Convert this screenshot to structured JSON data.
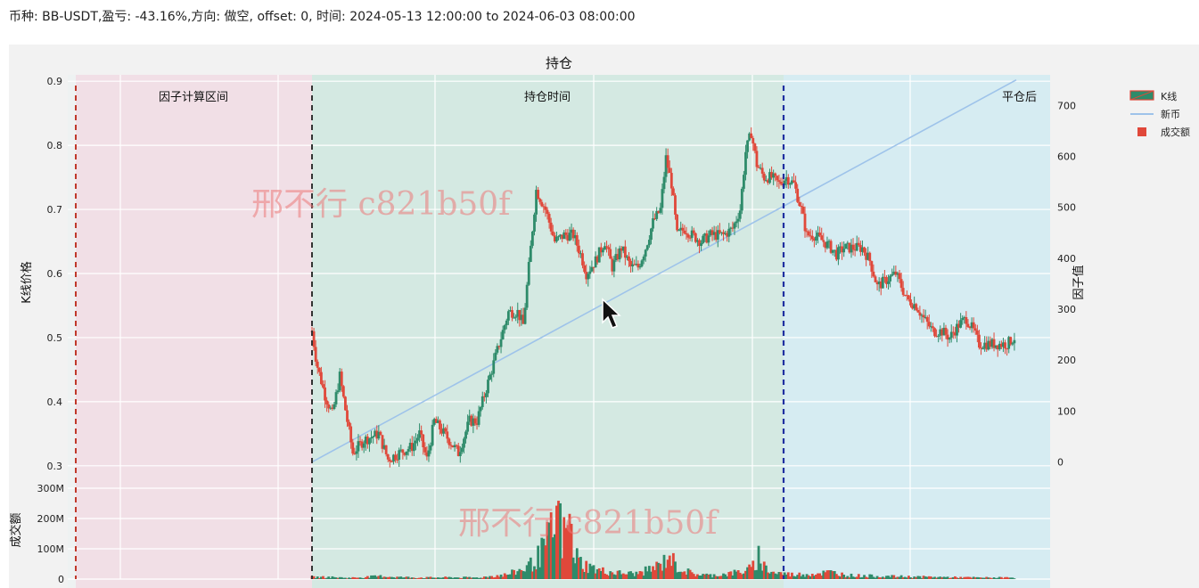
{
  "header": {
    "summary": "币种: BB-USDT,盈亏: -43.16%,方向: 做空, offset: 0, 时间: 2024-05-13 12:00:00 to 2024-06-03 08:00:00"
  },
  "watermark": {
    "top": "邢不行 c821b50f",
    "bottom": "邢不行 c821b50f"
  },
  "colors": {
    "up": "#2e8b6a",
    "down": "#e0483a",
    "trend": "#9ec3ea",
    "entry_line": "#333333",
    "factor_line": "#c0392b",
    "exit_line": "#1f2fa0",
    "zone_factor": "#f1dfe6",
    "zone_hold": "#d4e9e2",
    "zone_after": "#d6ecf2"
  },
  "chart_data": {
    "type": "candlestick",
    "title": "持仓",
    "zones": [
      {
        "label": "因子计算区间"
      },
      {
        "label": "持仓时间"
      },
      {
        "label": "平仓后"
      }
    ],
    "y_left": {
      "label": "K线价格",
      "range": [
        0.29,
        0.91
      ],
      "ticks": [
        0.3,
        0.4,
        0.5,
        0.6,
        0.7,
        0.8,
        0.9
      ]
    },
    "y_right": {
      "label": "因子值",
      "range": [
        -20,
        760
      ],
      "ticks": [
        0,
        100,
        200,
        300,
        400,
        500,
        600,
        700
      ]
    },
    "y_volume": {
      "label": "成交额",
      "range": [
        0,
        300
      ],
      "ticks": [
        "0",
        "100M",
        "200M",
        "300M"
      ]
    },
    "legend": {
      "position": "top-right",
      "items": [
        "K线",
        "新币",
        "成交额"
      ]
    },
    "factor_line": {
      "name": "新币",
      "start": 0,
      "end": 750
    },
    "price_path": [
      [
        0,
        0.51
      ],
      [
        5,
        0.46
      ],
      [
        14,
        0.41
      ],
      [
        22,
        0.38
      ],
      [
        30,
        0.44
      ],
      [
        38,
        0.37
      ],
      [
        44,
        0.32
      ],
      [
        56,
        0.34
      ],
      [
        72,
        0.35
      ],
      [
        82,
        0.31
      ],
      [
        94,
        0.32
      ],
      [
        108,
        0.33
      ],
      [
        116,
        0.35
      ],
      [
        124,
        0.31
      ],
      [
        132,
        0.37
      ],
      [
        148,
        0.34
      ],
      [
        158,
        0.32
      ],
      [
        170,
        0.37
      ],
      [
        178,
        0.37
      ],
      [
        186,
        0.41
      ],
      [
        200,
        0.48
      ],
      [
        212,
        0.54
      ],
      [
        222,
        0.54
      ],
      [
        228,
        0.52
      ],
      [
        234,
        0.61
      ],
      [
        242,
        0.73
      ],
      [
        252,
        0.7
      ],
      [
        262,
        0.65
      ],
      [
        272,
        0.66
      ],
      [
        282,
        0.66
      ],
      [
        290,
        0.63
      ],
      [
        296,
        0.6
      ],
      [
        306,
        0.62
      ],
      [
        316,
        0.65
      ],
      [
        324,
        0.61
      ],
      [
        334,
        0.64
      ],
      [
        344,
        0.61
      ],
      [
        352,
        0.61
      ],
      [
        360,
        0.64
      ],
      [
        368,
        0.68
      ],
      [
        376,
        0.7
      ],
      [
        382,
        0.78
      ],
      [
        388,
        0.74
      ],
      [
        394,
        0.66
      ],
      [
        402,
        0.67
      ],
      [
        410,
        0.66
      ],
      [
        420,
        0.65
      ],
      [
        430,
        0.66
      ],
      [
        444,
        0.66
      ],
      [
        454,
        0.67
      ],
      [
        462,
        0.7
      ],
      [
        468,
        0.79
      ],
      [
        474,
        0.82
      ],
      [
        480,
        0.77
      ],
      [
        488,
        0.75
      ],
      [
        496,
        0.75
      ],
      [
        504,
        0.74
      ],
      [
        512,
        0.75
      ],
      [
        520,
        0.74
      ],
      [
        528,
        0.7
      ],
      [
        534,
        0.66
      ],
      [
        542,
        0.66
      ],
      [
        552,
        0.65
      ],
      [
        560,
        0.64
      ],
      [
        566,
        0.63
      ],
      [
        574,
        0.64
      ],
      [
        584,
        0.64
      ],
      [
        594,
        0.64
      ],
      [
        602,
        0.62
      ],
      [
        610,
        0.58
      ],
      [
        620,
        0.59
      ],
      [
        630,
        0.6
      ],
      [
        642,
        0.56
      ],
      [
        652,
        0.55
      ],
      [
        660,
        0.53
      ],
      [
        670,
        0.51
      ],
      [
        680,
        0.51
      ],
      [
        688,
        0.5
      ],
      [
        698,
        0.52
      ],
      [
        706,
        0.53
      ],
      [
        714,
        0.51
      ],
      [
        720,
        0.49
      ],
      [
        728,
        0.49
      ],
      [
        738,
        0.49
      ],
      [
        750,
        0.49
      ],
      [
        758,
        0.5
      ]
    ],
    "volume_spikes": [
      [
        0,
        8
      ],
      [
        20,
        8
      ],
      [
        40,
        5
      ],
      [
        76,
        12
      ],
      [
        94,
        8
      ],
      [
        120,
        6
      ],
      [
        150,
        7
      ],
      [
        180,
        6
      ],
      [
        198,
        14
      ],
      [
        210,
        18
      ],
      [
        220,
        30
      ],
      [
        230,
        45
      ],
      [
        236,
        60
      ],
      [
        242,
        80
      ],
      [
        246,
        100
      ],
      [
        250,
        125
      ],
      [
        254,
        155
      ],
      [
        258,
        185
      ],
      [
        262,
        205
      ],
      [
        266,
        290
      ],
      [
        270,
        150
      ],
      [
        274,
        200
      ],
      [
        278,
        230
      ],
      [
        282,
        120
      ],
      [
        288,
        75
      ],
      [
        296,
        55
      ],
      [
        310,
        35
      ],
      [
        330,
        25
      ],
      [
        350,
        22
      ],
      [
        364,
        38
      ],
      [
        378,
        60
      ],
      [
        386,
        105
      ],
      [
        392,
        55
      ],
      [
        410,
        22
      ],
      [
        430,
        15
      ],
      [
        450,
        22
      ],
      [
        470,
        35
      ],
      [
        478,
        55
      ],
      [
        482,
        100
      ],
      [
        486,
        60
      ],
      [
        496,
        28
      ],
      [
        520,
        18
      ],
      [
        540,
        22
      ],
      [
        560,
        28
      ],
      [
        580,
        15
      ],
      [
        610,
        12
      ],
      [
        640,
        10
      ],
      [
        680,
        8
      ],
      [
        720,
        6
      ],
      [
        758,
        6
      ]
    ]
  }
}
